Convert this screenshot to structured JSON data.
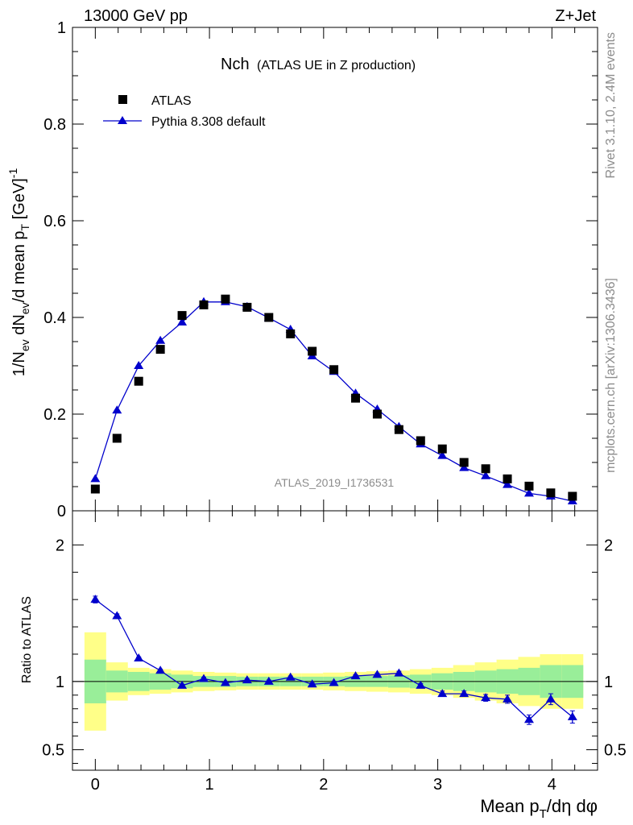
{
  "header": {
    "left": "13000 GeV pp",
    "right": "Z+Jet"
  },
  "side_labels": {
    "rivet": "Rivet 3.1.10,  2.4M events",
    "mcplots": "mcplots.cern.ch [arXiv:1306.3436]"
  },
  "chart_data": {
    "type": "scatter",
    "title": "Nch",
    "subtitle": "(ATLAS UE in Z production)",
    "watermark": "ATLAS_2019_I1736531",
    "xlabel": "Mean p_T/dη dφ",
    "ylabel": "1/N_ev dN_ev/d mean p_T [GeV]^-1",
    "ratio_ylabel": "Ratio to ATLAS",
    "xlim": [
      -0.2,
      4.4
    ],
    "ylim": [
      0,
      1.0
    ],
    "ratio_ylim": [
      0.35,
      2.25
    ],
    "x_ticks": [
      "0",
      "1",
      "2",
      "3",
      "4"
    ],
    "y_ticks": [
      "0",
      "0.2",
      "0.4",
      "0.6",
      "0.8",
      "1"
    ],
    "ratio_ticks": [
      "0.5",
      "1",
      "2"
    ],
    "legend": [
      {
        "name": "ATLAS",
        "marker": "square",
        "color": "#000000"
      },
      {
        "name": "Pythia 8.308 default",
        "marker": "triangle",
        "color": "#0000cc"
      }
    ],
    "x": [
      0.0,
      0.19,
      0.38,
      0.57,
      0.76,
      0.95,
      1.14,
      1.33,
      1.52,
      1.71,
      1.9,
      2.09,
      2.28,
      2.47,
      2.66,
      2.85,
      3.04,
      3.23,
      3.42,
      3.61,
      3.8,
      3.99,
      4.18
    ],
    "series": [
      {
        "name": "ATLAS",
        "values": [
          0.045,
          0.15,
          0.268,
          0.334,
          0.404,
          0.426,
          0.438,
          0.421,
          0.4,
          0.366,
          0.33,
          0.292,
          0.233,
          0.2,
          0.168,
          0.145,
          0.128,
          0.1,
          0.087,
          0.066,
          0.051,
          0.037,
          0.03
        ]
      },
      {
        "name": "Pythia 8.308 default",
        "values": [
          0.066,
          0.208,
          0.3,
          0.352,
          0.39,
          0.432,
          0.432,
          0.422,
          0.399,
          0.375,
          0.32,
          0.288,
          0.243,
          0.21,
          0.174,
          0.138,
          0.114,
          0.089,
          0.072,
          0.054,
          0.036,
          0.03,
          0.02
        ]
      }
    ],
    "ratio": {
      "values": [
        1.6,
        1.48,
        1.17,
        1.08,
        0.97,
        1.02,
        0.99,
        1.01,
        1.0,
        1.03,
        0.98,
        0.99,
        1.04,
        1.05,
        1.06,
        0.97,
        0.91,
        0.91,
        0.88,
        0.87,
        0.72,
        0.87,
        0.74
      ],
      "errors": [
        0.025,
        0.015,
        0.01,
        0.01,
        0.01,
        0.01,
        0.01,
        0.01,
        0.01,
        0.01,
        0.01,
        0.01,
        0.01,
        0.01,
        0.015,
        0.015,
        0.02,
        0.02,
        0.025,
        0.03,
        0.035,
        0.04,
        0.045
      ],
      "band_stat": [
        0.16,
        0.08,
        0.07,
        0.06,
        0.05,
        0.04,
        0.04,
        0.035,
        0.035,
        0.035,
        0.035,
        0.035,
        0.04,
        0.04,
        0.045,
        0.05,
        0.06,
        0.07,
        0.08,
        0.09,
        0.1,
        0.12,
        0.12
      ],
      "band_total": [
        0.36,
        0.14,
        0.1,
        0.09,
        0.08,
        0.07,
        0.065,
        0.06,
        0.06,
        0.06,
        0.06,
        0.065,
        0.07,
        0.075,
        0.08,
        0.09,
        0.1,
        0.12,
        0.14,
        0.16,
        0.18,
        0.2,
        0.2
      ]
    }
  }
}
